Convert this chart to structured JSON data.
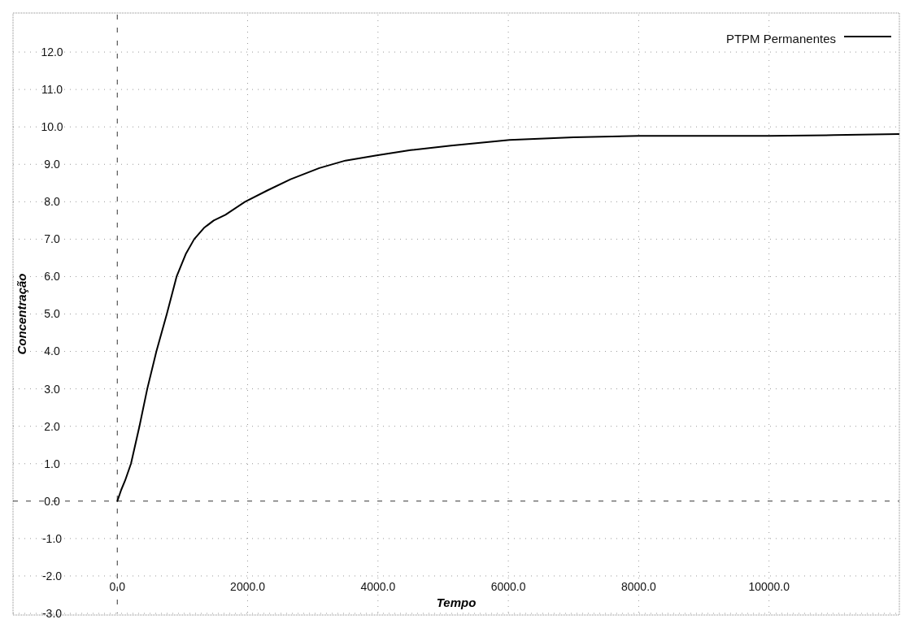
{
  "chart_data": {
    "type": "line",
    "xlabel": "Tempo",
    "ylabel": "Concentração",
    "series": [
      {
        "name": "PTPM Permanentes",
        "color": "#000000",
        "x": [
          0,
          60,
          120,
          210,
          340,
          460,
          600,
          760,
          910,
          1050,
          1180,
          1330,
          1480,
          1660,
          1960,
          2300,
          2660,
          3100,
          3500,
          3980,
          4500,
          5120,
          6020,
          7000,
          8000,
          9000,
          10010,
          11000,
          11990
        ],
        "values": [
          0,
          0.3,
          0.55,
          1.0,
          2.0,
          3.0,
          4.0,
          5.0,
          6.0,
          6.6,
          7.0,
          7.3,
          7.5,
          7.65,
          8.0,
          8.3,
          8.6,
          8.9,
          9.1,
          9.24,
          9.38,
          9.5,
          9.65,
          9.72,
          9.76,
          9.76,
          9.76,
          9.78,
          9.81
        ]
      }
    ],
    "xlim": [
      -1600,
      12000
    ],
    "ylim": [
      -3,
      13
    ],
    "xticks": [
      {
        "value": 0,
        "label": "0.0"
      },
      {
        "value": 2000,
        "label": "2000.0"
      },
      {
        "value": 4000,
        "label": "4000.0"
      },
      {
        "value": 6000,
        "label": "6000.0"
      },
      {
        "value": 8000,
        "label": "8000.0"
      },
      {
        "value": 10000,
        "label": "10000.0"
      }
    ],
    "yticks": [
      {
        "value": -3,
        "label": "-3.0"
      },
      {
        "value": -2,
        "label": "-2.0"
      },
      {
        "value": -1,
        "label": "-1.0"
      },
      {
        "value": 0,
        "label": "0.0"
      },
      {
        "value": 1,
        "label": "1.0"
      },
      {
        "value": 2,
        "label": "2.0"
      },
      {
        "value": 3,
        "label": "3.0"
      },
      {
        "value": 4,
        "label": "4.0"
      },
      {
        "value": 5,
        "label": "5.0"
      },
      {
        "value": 6,
        "label": "6.0"
      },
      {
        "value": 7,
        "label": "7.0"
      },
      {
        "value": 8,
        "label": "8.0"
      },
      {
        "value": 9,
        "label": "9.0"
      },
      {
        "value": 10,
        "label": "10.0"
      },
      {
        "value": 11,
        "label": "11.0"
      },
      {
        "value": 12,
        "label": "12.0"
      }
    ],
    "grid": true,
    "legend": "top right",
    "marker": "none",
    "line_style": "solid"
  }
}
